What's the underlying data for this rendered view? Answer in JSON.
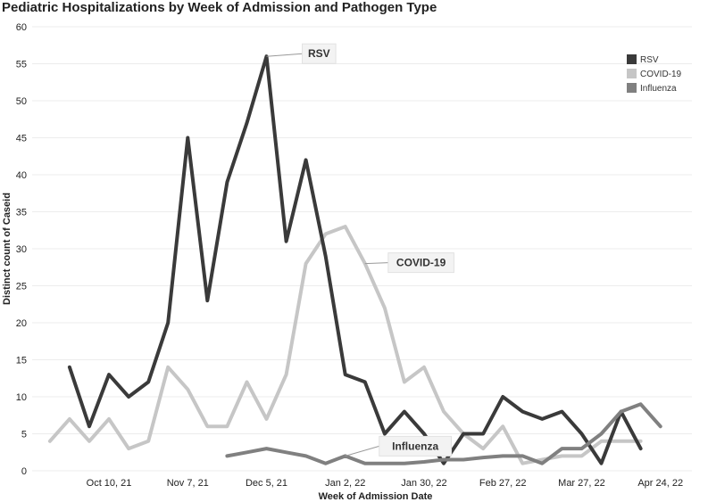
{
  "chart_data": {
    "type": "line",
    "title": "Pediatric Hospitalizations by Week of Admission and Pathogen Type",
    "xlabel": "Week of Admission Date",
    "ylabel": "Distinct count of Caseid",
    "ylim": [
      0,
      60
    ],
    "y_ticks": [
      "0",
      "5",
      "10",
      "15",
      "20",
      "25",
      "30",
      "35",
      "40",
      "45",
      "50",
      "55",
      "60"
    ],
    "x_ticks": [
      {
        "label": "Oct 10, 21",
        "week": 3
      },
      {
        "label": "Nov 7, 21",
        "week": 7
      },
      {
        "label": "Dec 5, 21",
        "week": 11
      },
      {
        "label": "Jan 2, 22",
        "week": 15
      },
      {
        "label": "Jan 30, 22",
        "week": 19
      },
      {
        "label": "Feb 27, 22",
        "week": 23
      },
      {
        "label": "Mar 27, 22",
        "week": 27
      },
      {
        "label": "Apr 24, 22",
        "week": 31
      }
    ],
    "x_range": [
      -0.9,
      32.6
    ],
    "grid": true,
    "legend_position": "top-right",
    "series": [
      {
        "name": "RSV",
        "color": "#3a3a3a",
        "annotation": "RSV",
        "ann_week": 11,
        "start_week": 1,
        "values": [
          14,
          6,
          13,
          10,
          12,
          20,
          45,
          23,
          39,
          47,
          56,
          31,
          42,
          29,
          13,
          12,
          5,
          8,
          5,
          1,
          5,
          5,
          10,
          8,
          7,
          8,
          5,
          1,
          8,
          3
        ]
      },
      {
        "name": "COVID-19",
        "color": "#c6c6c6",
        "annotation": "COVID-19",
        "ann_week": 16,
        "start_week": 0,
        "values": [
          4,
          7,
          4,
          7,
          3,
          4,
          14,
          11,
          6,
          6,
          12,
          7,
          13,
          28,
          32,
          33,
          28,
          22,
          12,
          14,
          8,
          5,
          3,
          6,
          1,
          1.5,
          2,
          2,
          4,
          4,
          4
        ]
      },
      {
        "name": "Influenza",
        "color": "#808080",
        "annotation": "Influenza",
        "ann_week": 15,
        "start_week": 9,
        "values": [
          2,
          2.5,
          3,
          2.5,
          2,
          1,
          2,
          1,
          1,
          1,
          1.2,
          1.5,
          1.5,
          1.8,
          2,
          2,
          1,
          3,
          3,
          5,
          8,
          9,
          6
        ]
      }
    ]
  }
}
